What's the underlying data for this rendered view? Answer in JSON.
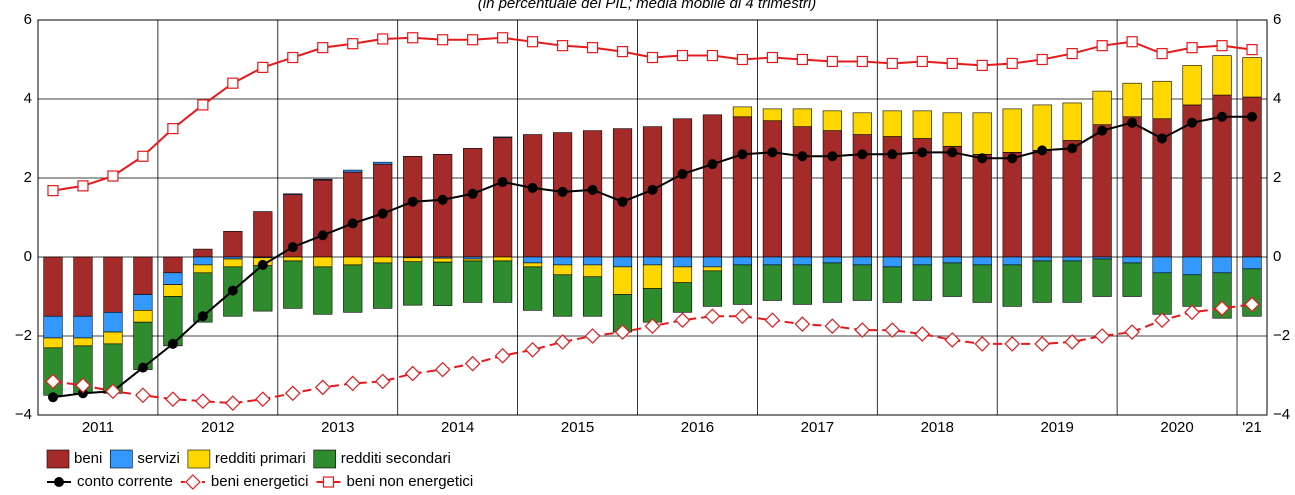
{
  "chart_data": {
    "type": "bar",
    "subtitle": "(in percentuale del PIL; media mobile di 4 trimestri)",
    "categories": [
      "2011",
      null,
      null,
      null,
      "2012",
      null,
      null,
      null,
      "2013",
      null,
      null,
      null,
      "2014",
      null,
      null,
      null,
      "2015",
      null,
      null,
      null,
      "2016",
      null,
      null,
      null,
      "2017",
      null,
      null,
      null,
      "2018",
      null,
      null,
      null,
      "2019",
      null,
      null,
      null,
      "2020",
      null,
      null,
      null,
      "'21"
    ],
    "ylim": [
      -4,
      6
    ],
    "yticks": [
      {
        "value": -4,
        "label": "−4"
      },
      {
        "value": -2,
        "label": "−2"
      },
      0,
      2,
      4,
      6
    ],
    "grid": true,
    "series": [
      {
        "name": "beni",
        "type": "bar",
        "color": "#a52a2a",
        "values": [
          -1.5,
          -1.5,
          -1.4,
          -0.95,
          -0.4,
          0.2,
          0.65,
          1.15,
          1.58,
          1.95,
          2.15,
          2.35,
          2.55,
          2.6,
          2.75,
          3.02,
          3.1,
          3.15,
          3.2,
          3.25,
          3.3,
          3.5,
          3.6,
          3.55,
          3.45,
          3.3,
          3.2,
          3.1,
          3.05,
          3.0,
          2.8,
          2.6,
          2.65,
          2.7,
          2.95,
          3.35,
          3.55,
          3.5,
          3.85,
          4.1,
          4.05
        ]
      },
      {
        "name": "servizi",
        "type": "bar",
        "color": "#3399ff",
        "values": [
          -0.55,
          -0.55,
          -0.5,
          -0.4,
          -0.3,
          -0.2,
          -0.05,
          -0.02,
          0.02,
          0.02,
          0.05,
          0.05,
          -0.02,
          -0.03,
          -0.05,
          0.02,
          -0.15,
          -0.2,
          -0.2,
          -0.25,
          -0.2,
          -0.25,
          -0.25,
          -0.2,
          -0.2,
          -0.2,
          -0.15,
          -0.2,
          -0.25,
          -0.2,
          -0.15,
          -0.2,
          -0.2,
          -0.1,
          -0.1,
          -0.05,
          -0.15,
          -0.4,
          -0.45,
          -0.4,
          -0.3
        ]
      },
      {
        "name": "redditi primari",
        "type": "bar",
        "color": "#ffd700",
        "values": [
          -0.25,
          -0.2,
          -0.3,
          -0.3,
          -0.3,
          -0.2,
          -0.2,
          -0.2,
          -0.1,
          -0.25,
          -0.2,
          -0.15,
          -0.1,
          -0.1,
          -0.05,
          -0.1,
          -0.1,
          -0.25,
          -0.3,
          -0.7,
          -0.6,
          -0.4,
          -0.1,
          0.25,
          0.3,
          0.45,
          0.5,
          0.55,
          0.65,
          0.7,
          0.85,
          1.05,
          1.1,
          1.15,
          0.95,
          0.85,
          0.85,
          0.95,
          1.0,
          1.0,
          1.0
        ]
      },
      {
        "name": "redditi secondari",
        "type": "bar",
        "color": "#2e8b2e",
        "values": [
          -1.2,
          -1.2,
          -1.25,
          -1.2,
          -1.25,
          -1.25,
          -1.25,
          -1.15,
          -1.2,
          -1.2,
          -1.2,
          -1.15,
          -1.1,
          -1.1,
          -1.05,
          -1.05,
          -1.1,
          -1.05,
          -1.0,
          -0.95,
          -0.85,
          -0.75,
          -0.9,
          -1.0,
          -0.9,
          -1.0,
          -1.0,
          -0.9,
          -0.9,
          -0.9,
          -0.85,
          -0.95,
          -1.05,
          -1.05,
          -1.05,
          -0.95,
          -0.85,
          -1.05,
          -0.8,
          -1.15,
          -1.2
        ]
      },
      {
        "name": "conto corrente",
        "type": "line",
        "color": "#000000",
        "marker": "circle",
        "dashed": false,
        "values": [
          -3.55,
          -3.45,
          -3.4,
          -2.8,
          -2.2,
          -1.5,
          -0.85,
          -0.2,
          0.25,
          0.55,
          0.85,
          1.1,
          1.4,
          1.45,
          1.6,
          1.9,
          1.75,
          1.65,
          1.7,
          1.4,
          1.7,
          2.1,
          2.35,
          2.6,
          2.65,
          2.55,
          2.55,
          2.6,
          2.6,
          2.65,
          2.65,
          2.5,
          2.5,
          2.7,
          2.75,
          3.2,
          3.4,
          3.0,
          3.4,
          3.55,
          3.55
        ]
      },
      {
        "name": "beni energetici",
        "type": "line",
        "color": "#e41a1c",
        "marker": "diamond",
        "dashed": true,
        "values": [
          -3.15,
          -3.25,
          -3.4,
          -3.5,
          -3.6,
          -3.65,
          -3.7,
          -3.6,
          -3.45,
          -3.3,
          -3.2,
          -3.15,
          -2.95,
          -2.85,
          -2.7,
          -2.5,
          -2.35,
          -2.15,
          -2.0,
          -1.9,
          -1.75,
          -1.6,
          -1.5,
          -1.5,
          -1.6,
          -1.7,
          -1.75,
          -1.85,
          -1.85,
          -1.95,
          -2.1,
          -2.2,
          -2.2,
          -2.2,
          -2.15,
          -2.0,
          -1.9,
          -1.6,
          -1.4,
          -1.3,
          -1.2
        ]
      },
      {
        "name": "beni non energetici",
        "type": "line",
        "color": "#e41a1c",
        "marker": "square",
        "dashed": false,
        "values": [
          1.68,
          1.8,
          2.05,
          2.55,
          3.25,
          3.85,
          4.4,
          4.8,
          5.05,
          5.3,
          5.4,
          5.52,
          5.55,
          5.5,
          5.5,
          5.55,
          5.45,
          5.35,
          5.3,
          5.2,
          5.05,
          5.1,
          5.1,
          5.0,
          5.05,
          5.0,
          4.95,
          4.95,
          4.9,
          4.95,
          4.9,
          4.85,
          4.9,
          5.0,
          5.15,
          5.35,
          5.45,
          5.15,
          5.3,
          5.35,
          5.25
        ]
      }
    ]
  }
}
